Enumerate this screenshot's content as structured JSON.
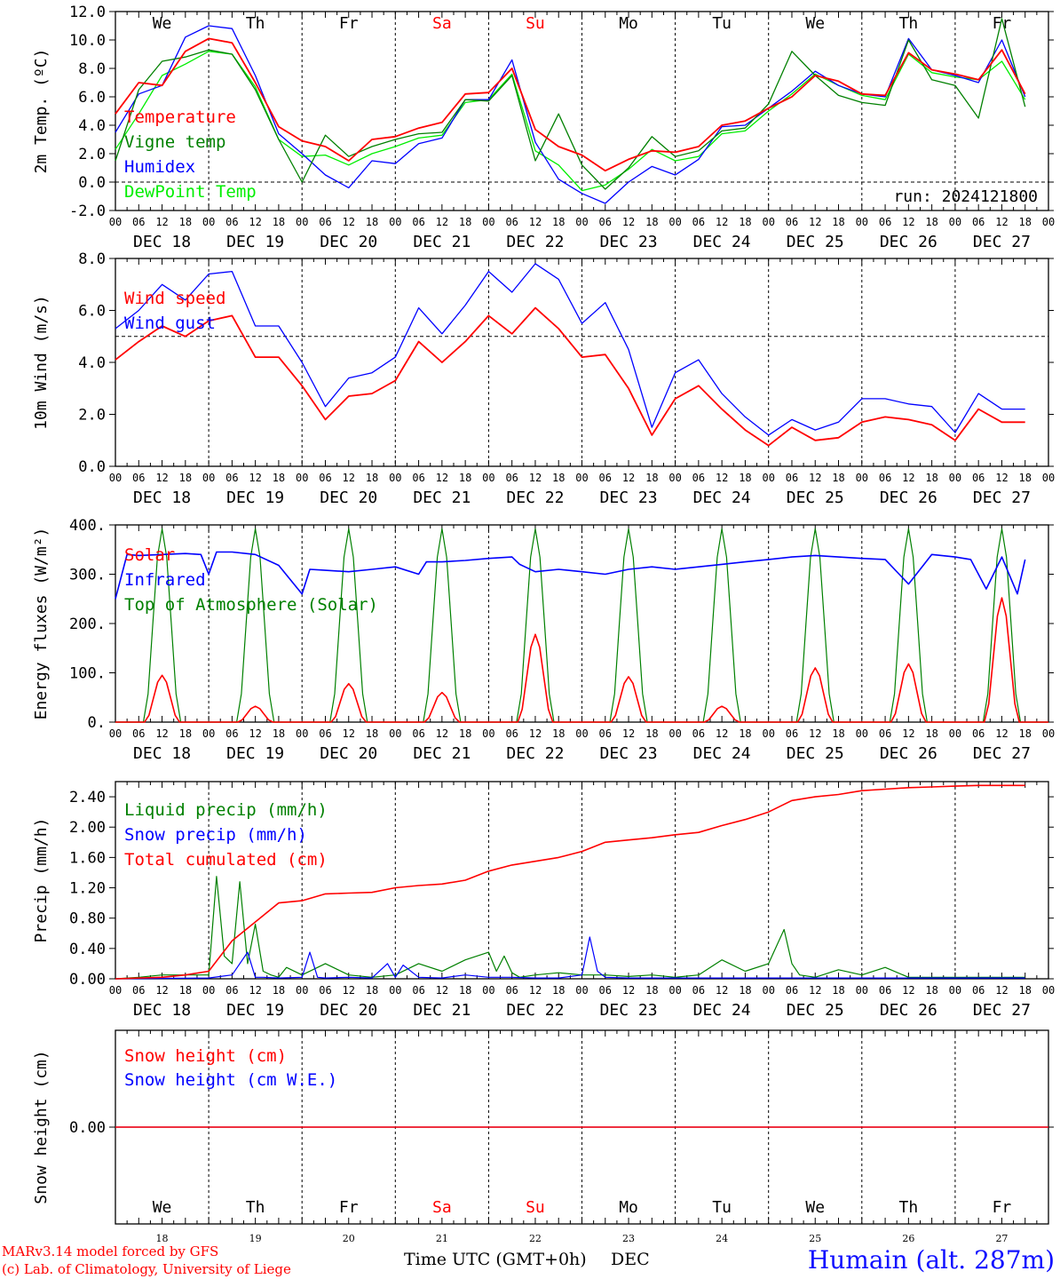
{
  "footer": {
    "credit_line1": "MARv3.14 model forced by GFS",
    "credit_line2": "(c) Lab. of Climatology, University of Liege",
    "xlabel": "Time UTC (GMT+0h)",
    "month": "DEC",
    "station": "Humain (alt. 287m)"
  },
  "colors": {
    "red": "#ff0000",
    "blue": "#0000ff",
    "green": "#008000",
    "lightgreen": "#00ee00",
    "grid": "#000000",
    "weekend": "#ff0000"
  },
  "time_axis": {
    "hour_labels": [
      "00",
      "06",
      "12",
      "18"
    ],
    "end_label": "00",
    "dates": [
      "DEC 18",
      "DEC 19",
      "DEC 20",
      "DEC 21",
      "DEC 22",
      "DEC 23",
      "DEC 24",
      "DEC 25",
      "DEC 26",
      "DEC 27"
    ],
    "day_names": [
      "We",
      "Th",
      "Fr",
      "Sa",
      "Su",
      "Mo",
      "Tu",
      "We",
      "Th",
      "Fr"
    ],
    "day_numbers": [
      "18",
      "19",
      "20",
      "21",
      "22",
      "23",
      "24",
      "25",
      "26",
      "27"
    ],
    "weekend_days": [
      3,
      4
    ],
    "days": 10
  },
  "chart_data": [
    {
      "type": "line",
      "ylabel": "2m Temp. (ºC)",
      "ylim": [
        -2,
        12
      ],
      "yticks": [
        "-2.0",
        "0.0",
        "2.0",
        "4.0",
        "6.0",
        "8.0",
        "10.0",
        "12.0"
      ],
      "ytick_values": [
        -2,
        0,
        2,
        4,
        6,
        8,
        10,
        12
      ],
      "dashed_reference": 0,
      "annotation": "run: 2024121800",
      "x_unit": "hours since DEC 18 00 UTC",
      "series": [
        {
          "name": "Temperature",
          "color": "red",
          "x": [
            0,
            6,
            12,
            18,
            24,
            30,
            36,
            42,
            48,
            54,
            60,
            66,
            72,
            78,
            84,
            90,
            96,
            102,
            108,
            114,
            120,
            126,
            132,
            138,
            144,
            150,
            156,
            162,
            168,
            174,
            180,
            186,
            192,
            198,
            204,
            210,
            216,
            222,
            228,
            234
          ],
          "y": [
            4.8,
            7.0,
            6.8,
            9.2,
            10.1,
            9.8,
            7.0,
            3.9,
            2.9,
            2.5,
            1.5,
            3.0,
            3.2,
            3.8,
            4.2,
            6.2,
            6.3,
            8.0,
            3.7,
            2.5,
            1.9,
            0.8,
            1.6,
            2.2,
            2.1,
            2.5,
            4.0,
            4.3,
            5.2,
            6.0,
            7.5,
            7.1,
            6.2,
            6.1,
            9.1,
            7.9,
            7.6,
            7.2,
            9.3,
            6.2
          ]
        },
        {
          "name": "Vigne temp",
          "color": "green",
          "x": [
            0,
            6,
            12,
            18,
            24,
            30,
            36,
            42,
            48,
            54,
            60,
            66,
            72,
            78,
            84,
            90,
            96,
            102,
            108,
            114,
            120,
            126,
            132,
            138,
            144,
            150,
            156,
            162,
            168,
            174,
            180,
            186,
            192,
            198,
            204,
            210,
            216,
            222,
            228,
            234
          ],
          "y": [
            1.5,
            6.5,
            8.5,
            8.8,
            9.3,
            9.0,
            6.5,
            3.0,
            0.0,
            3.3,
            1.8,
            2.5,
            3.0,
            3.4,
            3.5,
            5.8,
            5.7,
            7.5,
            1.5,
            4.8,
            1.2,
            -0.5,
            1.0,
            3.2,
            1.8,
            2.2,
            3.6,
            3.8,
            5.5,
            9.2,
            7.5,
            6.1,
            5.6,
            5.4,
            10.0,
            7.2,
            6.8,
            4.5,
            11.5,
            5.3
          ]
        },
        {
          "name": "Humidex",
          "color": "blue",
          "x": [
            0,
            6,
            12,
            18,
            24,
            30,
            36,
            42,
            48,
            54,
            60,
            66,
            72,
            78,
            84,
            90,
            96,
            102,
            108,
            114,
            120,
            126,
            132,
            138,
            144,
            150,
            156,
            162,
            168,
            174,
            180,
            186,
            192,
            198,
            204,
            210,
            216,
            222,
            228,
            234
          ],
          "y": [
            3.5,
            6.2,
            6.8,
            10.2,
            11.0,
            10.8,
            7.5,
            3.4,
            2.0,
            0.5,
            -0.4,
            1.5,
            1.3,
            2.7,
            3.1,
            5.8,
            5.8,
            8.6,
            2.8,
            0.2,
            -0.8,
            -1.5,
            0.0,
            1.1,
            0.5,
            1.6,
            3.9,
            4.0,
            5.2,
            6.4,
            7.8,
            6.8,
            6.2,
            6.0,
            10.1,
            7.9,
            7.5,
            7.0,
            10.0,
            6.0
          ]
        },
        {
          "name": "DewPoint Temp",
          "color": "lightgreen",
          "x": [
            0,
            6,
            12,
            18,
            24,
            30,
            36,
            42,
            48,
            54,
            60,
            66,
            72,
            78,
            84,
            90,
            96,
            102,
            108,
            114,
            120,
            126,
            132,
            138,
            144,
            150,
            156,
            162,
            168,
            174,
            180,
            186,
            192,
            198,
            204,
            210,
            216,
            222,
            228,
            234
          ],
          "y": [
            2.3,
            4.8,
            7.5,
            8.3,
            9.2,
            9.0,
            6.7,
            3.0,
            1.8,
            1.9,
            1.2,
            2.0,
            2.5,
            3.1,
            3.3,
            5.6,
            5.8,
            7.6,
            2.2,
            1.2,
            -0.6,
            -0.2,
            0.9,
            2.3,
            1.5,
            1.8,
            3.4,
            3.6,
            5.0,
            6.2,
            7.6,
            6.8,
            6.1,
            5.8,
            9.0,
            7.7,
            7.4,
            7.2,
            8.5,
            5.8
          ]
        }
      ]
    },
    {
      "type": "line",
      "ylabel": "10m Wind (m/s)",
      "ylim": [
        0,
        8
      ],
      "yticks": [
        "0.0",
        "2.0",
        "4.0",
        "6.0",
        "8.0"
      ],
      "ytick_values": [
        0,
        2,
        4,
        6,
        8
      ],
      "dashed_reference": 5,
      "x_unit": "hours since DEC 18 00 UTC",
      "series": [
        {
          "name": "Wind speed",
          "color": "red",
          "x": [
            0,
            6,
            12,
            18,
            24,
            30,
            36,
            42,
            48,
            54,
            60,
            66,
            72,
            78,
            84,
            90,
            96,
            102,
            108,
            114,
            120,
            126,
            132,
            138,
            144,
            150,
            156,
            162,
            168,
            174,
            180,
            186,
            192,
            198,
            204,
            210,
            216,
            222,
            228,
            234
          ],
          "y": [
            4.1,
            4.8,
            5.4,
            5.0,
            5.6,
            5.8,
            4.2,
            4.2,
            3.1,
            1.8,
            2.7,
            2.8,
            3.3,
            4.8,
            4.0,
            4.8,
            5.8,
            5.1,
            6.1,
            5.3,
            4.2,
            4.3,
            3.0,
            1.2,
            2.6,
            3.1,
            2.2,
            1.4,
            0.8,
            1.5,
            1.0,
            1.1,
            1.7,
            1.9,
            1.8,
            1.6,
            1.0,
            2.2,
            1.7,
            1.7
          ]
        },
        {
          "name": "Wind gust",
          "color": "blue",
          "x": [
            0,
            6,
            12,
            18,
            24,
            30,
            36,
            42,
            48,
            54,
            60,
            66,
            72,
            78,
            84,
            90,
            96,
            102,
            108,
            114,
            120,
            126,
            132,
            138,
            144,
            150,
            156,
            162,
            168,
            174,
            180,
            186,
            192,
            198,
            204,
            210,
            216,
            222,
            228,
            234
          ],
          "y": [
            5.3,
            6.0,
            7.0,
            6.4,
            7.4,
            7.5,
            5.4,
            5.4,
            4.0,
            2.3,
            3.4,
            3.6,
            4.2,
            6.1,
            5.1,
            6.2,
            7.5,
            6.7,
            7.8,
            7.2,
            5.5,
            6.3,
            4.5,
            1.5,
            3.6,
            4.1,
            2.8,
            1.9,
            1.2,
            1.8,
            1.4,
            1.7,
            2.6,
            2.6,
            2.4,
            2.3,
            1.3,
            2.8,
            2.2,
            2.2
          ]
        }
      ]
    },
    {
      "type": "line",
      "ylabel": "Energy fluxes (W/m²)",
      "ylim": [
        0,
        400
      ],
      "yticks": [
        "0.",
        "100.",
        "200.",
        "300.",
        "400."
      ],
      "ytick_values": [
        0,
        100,
        200,
        300,
        400
      ],
      "x_unit": "hours since DEC 18 00 UTC",
      "series": [
        {
          "name": "Solar",
          "color": "red",
          "peaks": [
            95,
            32,
            78,
            60,
            178,
            92,
            32,
            110,
            118,
            252
          ],
          "peak_hour": 12,
          "half_width": 4.5
        },
        {
          "name": "Infrared",
          "color": "blue",
          "x": [
            0,
            3,
            6,
            12,
            18,
            22,
            24,
            26,
            30,
            36,
            42,
            48,
            50,
            54,
            60,
            66,
            72,
            78,
            80,
            84,
            90,
            96,
            102,
            104,
            108,
            114,
            120,
            126,
            132,
            138,
            144,
            150,
            156,
            162,
            168,
            174,
            180,
            186,
            192,
            198,
            204,
            210,
            216,
            220,
            224,
            228,
            232,
            234
          ],
          "y": [
            250,
            340,
            338,
            340,
            342,
            340,
            300,
            345,
            345,
            340,
            318,
            260,
            310,
            308,
            305,
            310,
            315,
            300,
            325,
            325,
            328,
            332,
            335,
            320,
            305,
            310,
            305,
            300,
            310,
            315,
            310,
            315,
            320,
            325,
            330,
            335,
            338,
            335,
            332,
            330,
            280,
            340,
            335,
            330,
            270,
            335,
            260,
            330
          ]
        },
        {
          "name": "Top of Atmosphere (Solar)",
          "color": "green",
          "peaks": [
            392,
            392,
            392,
            392,
            392,
            392,
            392,
            392,
            392,
            392
          ],
          "peak_hour": 12,
          "half_width": 4.8
        }
      ]
    },
    {
      "type": "line",
      "ylabel": "Precip (mm/h)",
      "ylim": [
        0,
        2.6
      ],
      "yticks": [
        "0.00",
        "0.40",
        "0.80",
        "1.20",
        "1.60",
        "2.00",
        "2.40"
      ],
      "ytick_values": [
        0,
        0.4,
        0.8,
        1.2,
        1.6,
        2.0,
        2.4
      ],
      "x_unit": "hours since DEC 18 00 UTC",
      "series": [
        {
          "name": "Liquid precip (mm/h)",
          "color": "green",
          "x": [
            0,
            6,
            12,
            18,
            24,
            26,
            28,
            30,
            32,
            34,
            36,
            38,
            40,
            42,
            44,
            48,
            54,
            60,
            66,
            72,
            78,
            84,
            90,
            96,
            98,
            100,
            102,
            104,
            108,
            114,
            120,
            126,
            132,
            138,
            144,
            150,
            156,
            162,
            168,
            172,
            174,
            176,
            180,
            186,
            192,
            198,
            204,
            210,
            216,
            222,
            228,
            234
          ],
          "y": [
            0,
            0.02,
            0.05,
            0.05,
            0.05,
            1.35,
            0.3,
            0.2,
            1.28,
            0.2,
            0.72,
            0.1,
            0.05,
            0.02,
            0.15,
            0.05,
            0.2,
            0.05,
            0.02,
            0.05,
            0.2,
            0.1,
            0.25,
            0.35,
            0.1,
            0.3,
            0.08,
            0.02,
            0.05,
            0.08,
            0.05,
            0.05,
            0.03,
            0.05,
            0.02,
            0.05,
            0.25,
            0.1,
            0.2,
            0.65,
            0.2,
            0.05,
            0.02,
            0.12,
            0.05,
            0.15,
            0.02,
            0.02,
            0.02,
            0.02,
            0.02,
            0.02
          ]
        },
        {
          "name": "Snow precip (mm/h)",
          "color": "blue",
          "x": [
            0,
            24,
            30,
            34,
            36,
            38,
            42,
            48,
            50,
            52,
            54,
            60,
            66,
            70,
            72,
            74,
            78,
            84,
            90,
            96,
            102,
            108,
            114,
            120,
            122,
            124,
            126,
            132,
            138,
            144,
            150,
            156,
            162,
            168,
            174,
            180,
            186,
            192,
            198,
            204,
            210,
            216,
            222,
            228,
            234
          ],
          "y": [
            0,
            0.01,
            0.05,
            0.35,
            0.02,
            0.02,
            0.01,
            0.02,
            0.35,
            0.02,
            0.01,
            0.02,
            0.01,
            0.2,
            0.02,
            0.18,
            0.02,
            0.01,
            0.05,
            0.02,
            0.02,
            0.01,
            0.01,
            0.05,
            0.55,
            0.1,
            0.02,
            0.01,
            0.01,
            0.01,
            0.01,
            0.01,
            0.01,
            0.01,
            0.01,
            0.01,
            0.01,
            0.01,
            0.01,
            0.01,
            0.01,
            0.01,
            0.01,
            0.01,
            0.01
          ]
        },
        {
          "name": "Total cumulated (cm)",
          "color": "red",
          "x": [
            0,
            12,
            18,
            24,
            30,
            36,
            42,
            48,
            54,
            60,
            66,
            72,
            78,
            84,
            90,
            96,
            102,
            108,
            114,
            120,
            126,
            132,
            138,
            144,
            150,
            156,
            162,
            168,
            174,
            180,
            186,
            192,
            198,
            204,
            210,
            216,
            222,
            228,
            234
          ],
          "y": [
            0,
            0.02,
            0.05,
            0.1,
            0.5,
            0.75,
            1.0,
            1.03,
            1.12,
            1.13,
            1.14,
            1.2,
            1.23,
            1.25,
            1.3,
            1.42,
            1.5,
            1.55,
            1.6,
            1.68,
            1.8,
            1.83,
            1.86,
            1.9,
            1.93,
            2.02,
            2.1,
            2.2,
            2.35,
            2.4,
            2.43,
            2.48,
            2.5,
            2.52,
            2.53,
            2.54,
            2.55,
            2.55,
            2.55
          ]
        }
      ]
    },
    {
      "type": "line",
      "ylabel": "Snow height (cm)",
      "yticks": [
        "0.00"
      ],
      "ytick_values": [
        0
      ],
      "x_unit": "hours since DEC 18 00 UTC",
      "series": [
        {
          "name": "Snow height (cm)",
          "color": "red",
          "x": [
            0,
            240
          ],
          "y": [
            0,
            0
          ]
        },
        {
          "name": "Snow height (cm W.E.)",
          "color": "blue",
          "x": [
            0,
            240
          ],
          "y": [
            0,
            0
          ]
        }
      ]
    }
  ]
}
